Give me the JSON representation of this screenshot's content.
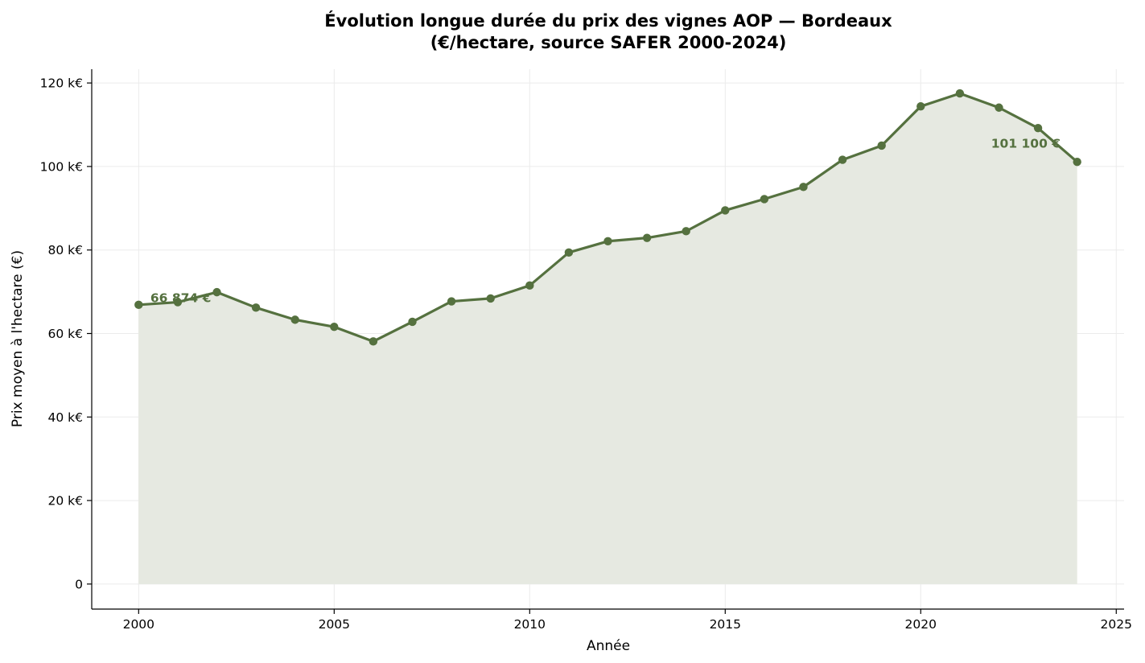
{
  "chart_data": {
    "type": "area",
    "title": "Évolution longue durée du prix des vignes AOP — Bordeaux",
    "subtitle": "(€/hectare, source SAFER 2000-2024)",
    "xlabel": "Année",
    "ylabel": "Prix moyen à l'hectare (€)",
    "xlim": [
      1998.8,
      2025.2
    ],
    "ylim": [
      -6000,
      123300
    ],
    "x_ticks": [
      2000,
      2005,
      2010,
      2015,
      2020,
      2025
    ],
    "x_tick_labels": [
      "2000",
      "2005",
      "2010",
      "2015",
      "2020",
      "2025"
    ],
    "y_ticks": [
      0,
      20000,
      40000,
      60000,
      80000,
      100000,
      120000
    ],
    "y_tick_labels": [
      "0",
      "20 k€",
      "40 k€",
      "60 k€",
      "80 k€",
      "100 k€",
      "120 k€"
    ],
    "grid": true,
    "series": [
      {
        "color": "#55713f",
        "fill_color": "#e6e9e1",
        "x": [
          2000,
          2001,
          2002,
          2003,
          2004,
          2005,
          2006,
          2007,
          2008,
          2009,
          2010,
          2011,
          2012,
          2013,
          2014,
          2015,
          2016,
          2017,
          2018,
          2019,
          2020,
          2021,
          2022,
          2023,
          2024
        ],
        "values": [
          66874,
          67500,
          69900,
          66200,
          63300,
          61600,
          58100,
          62800,
          67700,
          68400,
          71500,
          79400,
          82100,
          82900,
          84500,
          89500,
          92200,
          95100,
          101600,
          105000,
          114400,
          117500,
          114100,
          109200,
          101100
        ]
      }
    ],
    "annotations": [
      {
        "text": "66 874 €",
        "x": 2000.3,
        "y": 67500,
        "anchor": "start"
      },
      {
        "text": "101 100 €",
        "x": 2021.8,
        "y": 104500,
        "anchor": "start"
      }
    ]
  }
}
